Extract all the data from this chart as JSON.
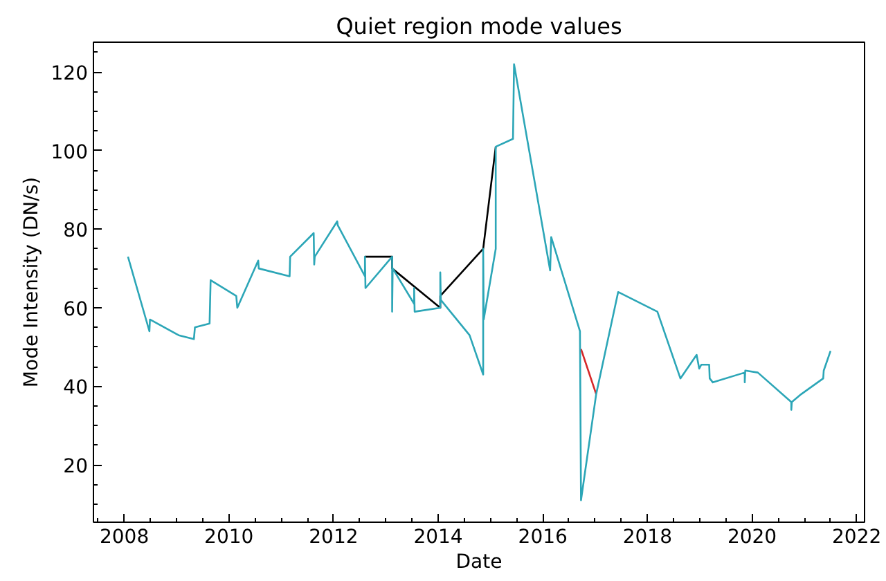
{
  "chart_data": {
    "type": "line",
    "title": "Quiet region mode values",
    "xlabel": "Date",
    "ylabel": "Mode Intensity (DN/s)",
    "xlim": [
      2007.41,
      2022.15
    ],
    "ylim": [
      5.4,
      127.6
    ],
    "xticks": [
      {
        "value": 2007.5,
        "label": null
      },
      2008,
      {
        "value": 2008.5,
        "label": null
      },
      {
        "value": 2009,
        "label": null
      },
      {
        "value": 2009.5,
        "label": null
      },
      2010,
      {
        "value": 2010.5,
        "label": null
      },
      {
        "value": 2011,
        "label": null
      },
      {
        "value": 2011.5,
        "label": null
      },
      2012,
      {
        "value": 2012.5,
        "label": null
      },
      {
        "value": 2013,
        "label": null
      },
      {
        "value": 2013.5,
        "label": null
      },
      2014,
      {
        "value": 2014.5,
        "label": null
      },
      {
        "value": 2015,
        "label": null
      },
      {
        "value": 2015.5,
        "label": null
      },
      2016,
      {
        "value": 2016.5,
        "label": null
      },
      {
        "value": 2017,
        "label": null
      },
      {
        "value": 2017.5,
        "label": null
      },
      2018,
      {
        "value": 2018.5,
        "label": null
      },
      {
        "value": 2019,
        "label": null
      },
      {
        "value": 2019.5,
        "label": null
      },
      2020,
      {
        "value": 2020.5,
        "label": null
      },
      {
        "value": 2021,
        "label": null
      },
      {
        "value": 2021.5,
        "label": null
      },
      2022
    ],
    "yticks": [
      {
        "value": 10,
        "label": null
      },
      {
        "value": 15,
        "label": null
      },
      20,
      {
        "value": 25,
        "label": null
      },
      {
        "value": 30,
        "label": null
      },
      {
        "value": 35,
        "label": null
      },
      40,
      {
        "value": 45,
        "label": null
      },
      {
        "value": 50,
        "label": null
      },
      {
        "value": 55,
        "label": null
      },
      60,
      {
        "value": 65,
        "label": null
      },
      {
        "value": 70,
        "label": null
      },
      {
        "value": 75,
        "label": null
      },
      80,
      {
        "value": 85,
        "label": null
      },
      {
        "value": 90,
        "label": null
      },
      {
        "value": 95,
        "label": null
      },
      100,
      {
        "value": 105,
        "label": null
      },
      {
        "value": 110,
        "label": null
      },
      {
        "value": 115,
        "label": null
      },
      120,
      {
        "value": 125,
        "label": null
      }
    ],
    "series": [
      {
        "color": "#000000",
        "x": [
          2012.6,
          2013.12,
          2013.12,
          2014.04,
          2014.04,
          2014.86,
          2015.1
        ],
        "values": [
          73,
          73,
          70,
          60,
          63,
          75,
          101
        ]
      },
      {
        "color": "#d62728",
        "x": [
          2016.73,
          2017.02
        ],
        "values": [
          49.5,
          38
        ]
      },
      {
        "color": "#2ca6b7",
        "x": [
          2008.07,
          2008.48,
          2008.49,
          2009.04,
          2009.33,
          2009.35,
          2009.63,
          2009.65,
          2010.14,
          2010.16,
          2010.56,
          2010.57,
          2011.16,
          2011.17,
          2011.62,
          2011.63,
          2011.64,
          2012.07,
          2012.08,
          2012.6,
          2012.6,
          2012.61,
          2013.12,
          2013.12,
          2013.13,
          2013.54,
          2013.54,
          2013.55,
          2014.04,
          2014.04,
          2014.05,
          2014.6,
          2014.86,
          2014.86,
          2014.87,
          2015.1,
          2015.1,
          2015.43,
          2015.45,
          2016.14,
          2016.16,
          2016.71,
          2016.73,
          2017.02,
          2017.44,
          2018.19,
          2018.63,
          2018.94,
          2018.99,
          2019.03,
          2019.18,
          2019.19,
          2019.25,
          2019.86,
          2019.86,
          2019.87,
          2020.11,
          2020.75,
          2020.75,
          2020.76,
          2020.94,
          2021.36,
          2021.37,
          2021.5
        ],
        "values": [
          73,
          54,
          57,
          53,
          52,
          55,
          56,
          67,
          63,
          60,
          72,
          70,
          68,
          73,
          79,
          71,
          73,
          82,
          81,
          68,
          73,
          65,
          73,
          59,
          70,
          61,
          65,
          59,
          60,
          69,
          62,
          53,
          43,
          75,
          57,
          75,
          101,
          103,
          122,
          69.5,
          78,
          54,
          11,
          38,
          64,
          59,
          42,
          48,
          44.5,
          45.5,
          45.5,
          42,
          41,
          43.5,
          41,
          44,
          43.5,
          36,
          34,
          36,
          38,
          42,
          44,
          49
        ]
      }
    ]
  }
}
